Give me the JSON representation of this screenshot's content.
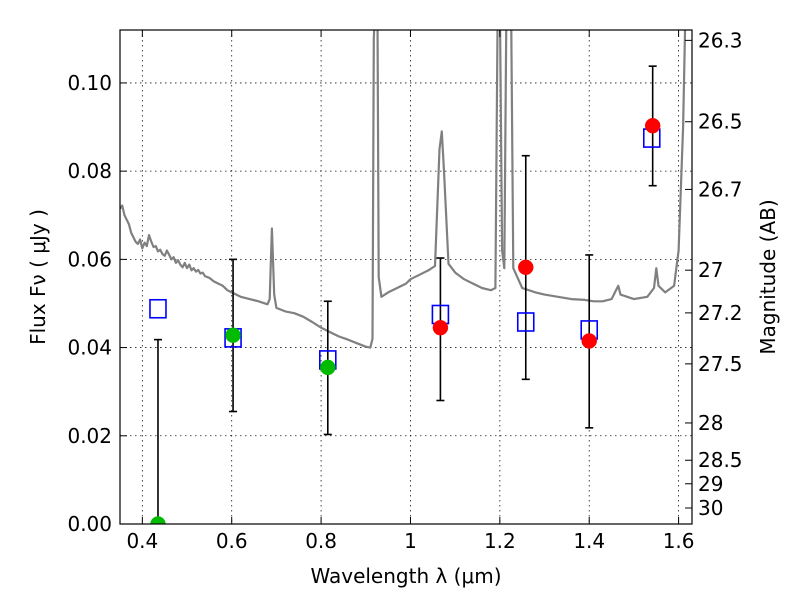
{
  "chart_data": {
    "type": "scatter",
    "xlabel": "Wavelength  λ (μm)",
    "ylabel": "Flux  Fν  ( μJy )",
    "ylabel_right": "Magnitude (AB)",
    "xlim": [
      0.35,
      1.63
    ],
    "ylim": [
      0,
      0.112
    ],
    "grid": true,
    "x_ticks": [
      0.4,
      0.6,
      0.8,
      1.0,
      1.2,
      1.4,
      1.6
    ],
    "x_tick_labels": [
      "0.4",
      "0.6",
      "0.8",
      "1",
      "1.2",
      "1.4",
      "1.6"
    ],
    "y_ticks": [
      0,
      0.02,
      0.04,
      0.06,
      0.08,
      0.1
    ],
    "y_tick_labels": [
      "0.00",
      "0.02",
      "0.04",
      "0.06",
      "0.08",
      "0.10"
    ],
    "mag_ticks": [
      26.3,
      26.5,
      26.7,
      27,
      27.2,
      27.5,
      28,
      28.5,
      29,
      30
    ],
    "mag_tick_labels": [
      "26.3",
      "26.5",
      "26.7",
      "27",
      "27.2",
      "27.5",
      "28",
      "28.5",
      "29",
      "30"
    ],
    "colors": {
      "model": "#808080",
      "model_photometry": "#0000ff",
      "detected": "#ff0000",
      "observed_green": "#00bb00",
      "errorbar": "#000000"
    },
    "series": [
      {
        "kind": "line",
        "points": [
          [
            0.35,
            0.0715
          ],
          [
            0.355,
            0.0722
          ],
          [
            0.36,
            0.07
          ],
          [
            0.365,
            0.069
          ],
          [
            0.37,
            0.068
          ],
          [
            0.375,
            0.066
          ],
          [
            0.38,
            0.065
          ],
          [
            0.385,
            0.064
          ],
          [
            0.39,
            0.0635
          ],
          [
            0.395,
            0.0645
          ],
          [
            0.4,
            0.0625
          ],
          [
            0.405,
            0.0638
          ],
          [
            0.41,
            0.063
          ],
          [
            0.415,
            0.0655
          ],
          [
            0.42,
            0.064
          ],
          [
            0.425,
            0.0628
          ],
          [
            0.43,
            0.063
          ],
          [
            0.435,
            0.0618
          ],
          [
            0.44,
            0.0622
          ],
          [
            0.445,
            0.0612
          ],
          [
            0.45,
            0.0608
          ],
          [
            0.455,
            0.062
          ],
          [
            0.46,
            0.061
          ],
          [
            0.465,
            0.06
          ],
          [
            0.47,
            0.0605
          ],
          [
            0.475,
            0.0592
          ],
          [
            0.48,
            0.0598
          ],
          [
            0.485,
            0.0588
          ],
          [
            0.49,
            0.0582
          ],
          [
            0.495,
            0.0592
          ],
          [
            0.5,
            0.058
          ],
          [
            0.505,
            0.0588
          ],
          [
            0.51,
            0.0575
          ],
          [
            0.515,
            0.058
          ],
          [
            0.52,
            0.0572
          ],
          [
            0.525,
            0.0576
          ],
          [
            0.53,
            0.0568
          ],
          [
            0.535,
            0.057
          ],
          [
            0.54,
            0.0562
          ],
          [
            0.55,
            0.0558
          ],
          [
            0.56,
            0.055
          ],
          [
            0.57,
            0.0545
          ],
          [
            0.58,
            0.054
          ],
          [
            0.59,
            0.053
          ],
          [
            0.6,
            0.0525
          ],
          [
            0.62,
            0.0515
          ],
          [
            0.64,
            0.051
          ],
          [
            0.66,
            0.0505
          ],
          [
            0.68,
            0.0498
          ],
          [
            0.685,
            0.051
          ],
          [
            0.69,
            0.067
          ],
          [
            0.695,
            0.052
          ],
          [
            0.7,
            0.049
          ],
          [
            0.72,
            0.0482
          ],
          [
            0.74,
            0.0478
          ],
          [
            0.76,
            0.047
          ],
          [
            0.78,
            0.0458
          ],
          [
            0.8,
            0.0445
          ],
          [
            0.82,
            0.0435
          ],
          [
            0.84,
            0.0425
          ],
          [
            0.86,
            0.0418
          ],
          [
            0.88,
            0.041
          ],
          [
            0.9,
            0.0402
          ],
          [
            0.91,
            0.04
          ],
          [
            0.915,
            0.042
          ],
          [
            0.918,
            0.11
          ],
          [
            0.922,
            0.12
          ],
          [
            0.926,
            0.12
          ],
          [
            0.929,
            0.056
          ],
          [
            0.935,
            0.0515
          ],
          [
            0.95,
            0.0525
          ],
          [
            0.97,
            0.0535
          ],
          [
            0.99,
            0.0545
          ],
          [
            1.0,
            0.0555
          ],
          [
            1.02,
            0.0565
          ],
          [
            1.04,
            0.0575
          ],
          [
            1.055,
            0.0585
          ],
          [
            1.065,
            0.085
          ],
          [
            1.07,
            0.089
          ],
          [
            1.075,
            0.08
          ],
          [
            1.085,
            0.059
          ],
          [
            1.1,
            0.057
          ],
          [
            1.12,
            0.0555
          ],
          [
            1.14,
            0.0545
          ],
          [
            1.16,
            0.0535
          ],
          [
            1.18,
            0.053
          ],
          [
            1.19,
            0.0535
          ],
          [
            1.195,
            0.115
          ],
          [
            1.2,
            0.12
          ],
          [
            1.205,
            0.062
          ],
          [
            1.21,
            0.058
          ],
          [
            1.215,
            0.12
          ],
          [
            1.225,
            0.12
          ],
          [
            1.23,
            0.058
          ],
          [
            1.25,
            0.0535
          ],
          [
            1.28,
            0.0525
          ],
          [
            1.3,
            0.052
          ],
          [
            1.33,
            0.0515
          ],
          [
            1.36,
            0.051
          ],
          [
            1.39,
            0.0508
          ],
          [
            1.41,
            0.0505
          ],
          [
            1.43,
            0.0505
          ],
          [
            1.45,
            0.051
          ],
          [
            1.46,
            0.053
          ],
          [
            1.465,
            0.054
          ],
          [
            1.47,
            0.052
          ],
          [
            1.5,
            0.051
          ],
          [
            1.53,
            0.0515
          ],
          [
            1.545,
            0.0535
          ],
          [
            1.55,
            0.058
          ],
          [
            1.555,
            0.054
          ],
          [
            1.57,
            0.0525
          ],
          [
            1.59,
            0.054
          ],
          [
            1.6,
            0.062
          ],
          [
            1.61,
            0.09
          ],
          [
            1.615,
            0.115
          ],
          [
            1.62,
            0.12
          ]
        ]
      },
      {
        "kind": "squares",
        "points": [
          [
            0.435,
            0.0488
          ],
          [
            0.603,
            0.0422
          ],
          [
            0.815,
            0.0372
          ],
          [
            1.067,
            0.0475
          ],
          [
            1.258,
            0.0458
          ],
          [
            1.4,
            0.044
          ],
          [
            1.54,
            0.0875
          ]
        ]
      },
      {
        "kind": "points_red",
        "points": [
          [
            1.067,
            0.0445
          ],
          [
            1.258,
            0.0582
          ],
          [
            1.4,
            0.0415
          ],
          [
            1.542,
            0.0903
          ]
        ]
      },
      {
        "kind": "points_green",
        "points": [
          [
            0.435,
            0.0
          ],
          [
            0.603,
            0.0428
          ],
          [
            0.815,
            0.0355
          ]
        ]
      },
      {
        "kind": "errorbars",
        "points": [
          [
            0.435,
            0.0,
            0.0418
          ],
          [
            0.603,
            0.0255,
            0.06
          ],
          [
            0.815,
            0.0203,
            0.0505
          ],
          [
            1.067,
            0.028,
            0.0603
          ],
          [
            1.258,
            0.0328,
            0.0835
          ],
          [
            1.4,
            0.0218,
            0.061
          ],
          [
            1.542,
            0.0767,
            0.1038
          ]
        ]
      }
    ]
  }
}
